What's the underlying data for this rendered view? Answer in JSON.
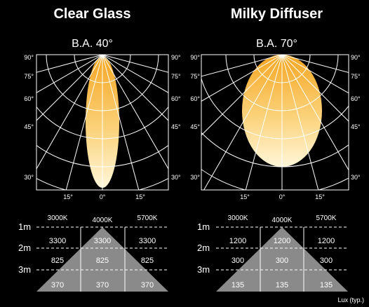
{
  "panels": [
    {
      "title": "Clear Glass",
      "beam_angle_label": "B.A. 40°",
      "polar_labels": {
        "left": [
          "90°",
          "75°",
          "60°",
          "45°",
          "30°"
        ],
        "right": [
          "90°",
          "75°",
          "60°",
          "45°",
          "30°"
        ],
        "bottom": [
          "15°",
          "0°",
          "15°"
        ]
      },
      "lux_table": {
        "column_headers": [
          "3000K",
          "4000K",
          "5700K"
        ],
        "row_labels": [
          "1m",
          "2m",
          "3m"
        ],
        "rows": [
          [
            "3300",
            "3300",
            "3300"
          ],
          [
            "825",
            "825",
            "825"
          ],
          [
            "370",
            "370",
            "370"
          ]
        ]
      }
    },
    {
      "title": "Milky Diffuser",
      "beam_angle_label": "B.A. 70°",
      "polar_labels": {
        "left": [
          "90°",
          "75°",
          "60°",
          "45°",
          "30°"
        ],
        "right": [
          "90°",
          "75°",
          "60°",
          "45°",
          "30°"
        ],
        "bottom": [
          "15°",
          "0°",
          "15°"
        ]
      },
      "lux_table": {
        "column_headers": [
          "3000K",
          "4000K",
          "5700K"
        ],
        "row_labels": [
          "1m",
          "2m",
          "3m"
        ],
        "rows": [
          [
            "1200",
            "1200",
            "1200"
          ],
          [
            "300",
            "300",
            "300"
          ],
          [
            "135",
            "135",
            "135"
          ]
        ],
        "footnote": "Lux (typ.)"
      }
    }
  ],
  "footnote": "Lux (typ.)",
  "colors": {
    "beam_top": "#f5a623",
    "beam_bottom": "#fff4c8",
    "grid": "#ffffff",
    "triangle": "#8a8a8a"
  }
}
